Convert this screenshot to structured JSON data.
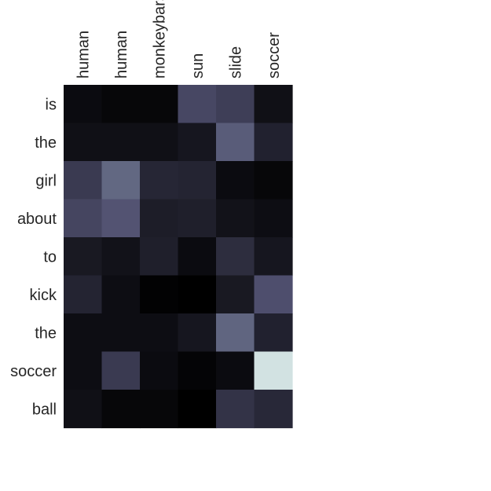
{
  "chart_data": {
    "type": "heatmap",
    "title": "",
    "xlabel": "",
    "ylabel": "",
    "x_categories": [
      "human",
      "human",
      "monkeybars",
      "sun",
      "slide",
      "soccer"
    ],
    "y_categories": [
      "is",
      "the",
      "girl",
      "about",
      "to",
      "kick",
      "the",
      "soccer",
      "ball"
    ],
    "value_range": [
      0,
      1
    ],
    "colormap": "bone",
    "grid": false,
    "colorbar": false,
    "values": [
      [
        0.05,
        0.03,
        0.03,
        0.32,
        0.28,
        0.07
      ],
      [
        0.07,
        0.07,
        0.07,
        0.1,
        0.4,
        0.15
      ],
      [
        0.26,
        0.44,
        0.17,
        0.16,
        0.05,
        0.03
      ],
      [
        0.31,
        0.37,
        0.13,
        0.14,
        0.08,
        0.06
      ],
      [
        0.11,
        0.08,
        0.14,
        0.05,
        0.2,
        0.1
      ],
      [
        0.16,
        0.06,
        0.01,
        0.0,
        0.11,
        0.35
      ],
      [
        0.06,
        0.06,
        0.06,
        0.1,
        0.43,
        0.15
      ],
      [
        0.06,
        0.26,
        0.05,
        0.02,
        0.05,
        0.87
      ],
      [
        0.07,
        0.03,
        0.03,
        0.0,
        0.23,
        0.18
      ]
    ]
  }
}
